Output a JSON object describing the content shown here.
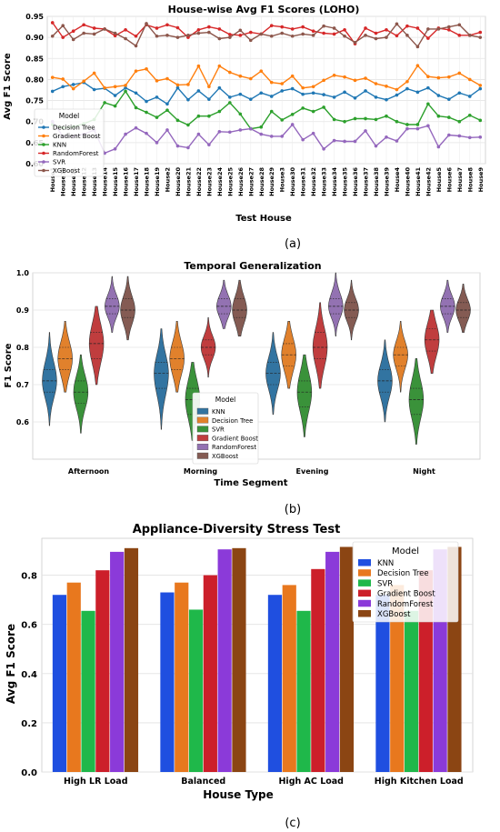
{
  "figure_labels": [
    "(a)",
    "(b)",
    "(c)"
  ],
  "chart_data": [
    {
      "type": "line",
      "title": "House-wise Avg F1 Scores (LOHO)",
      "xlabel": "Test House",
      "ylabel": "Avg F1 Score",
      "ylim": [
        0.6,
        0.95
      ],
      "yticks": [
        "0.60",
        "0.65",
        "0.70",
        "0.75",
        "0.80",
        "0.85",
        "0.90",
        "0.95"
      ],
      "grid": true,
      "legend": {
        "title": "Model",
        "placement": "left"
      },
      "categories": [
        "House1",
        "House10",
        "House11",
        "House12",
        "House13",
        "House14",
        "House15",
        "House16",
        "House17",
        "House18",
        "House19",
        "House2",
        "House20",
        "House21",
        "House22",
        "House23",
        "House24",
        "House25",
        "House26",
        "House27",
        "House28",
        "House29",
        "House3",
        "House30",
        "House31",
        "House32",
        "House33",
        "House34",
        "House35",
        "House36",
        "House37",
        "House38",
        "House39",
        "House4",
        "House40",
        "House41",
        "House42",
        "House5",
        "House6",
        "House7",
        "House8",
        "House9"
      ],
      "series": [
        {
          "name": "Decision Tree",
          "color": "#1f77b4",
          "values": [
            0.772,
            0.783,
            0.788,
            0.793,
            0.776,
            0.779,
            0.762,
            0.78,
            0.768,
            0.748,
            0.758,
            0.742,
            0.78,
            0.752,
            0.773,
            0.753,
            0.78,
            0.758,
            0.765,
            0.753,
            0.768,
            0.76,
            0.773,
            0.778,
            0.765,
            0.768,
            0.764,
            0.758,
            0.77,
            0.756,
            0.773,
            0.758,
            0.752,
            0.763,
            0.778,
            0.77,
            0.78,
            0.762,
            0.753,
            0.768,
            0.76,
            0.778
          ]
        },
        {
          "name": "Gradient Boost",
          "color": "#ff7f0e",
          "values": [
            0.805,
            0.801,
            0.778,
            0.796,
            0.815,
            0.78,
            0.783,
            0.786,
            0.82,
            0.825,
            0.797,
            0.802,
            0.787,
            0.788,
            0.832,
            0.783,
            0.832,
            0.817,
            0.808,
            0.802,
            0.82,
            0.793,
            0.79,
            0.808,
            0.78,
            0.783,
            0.798,
            0.81,
            0.806,
            0.798,
            0.803,
            0.79,
            0.784,
            0.776,
            0.795,
            0.833,
            0.807,
            0.804,
            0.806,
            0.815,
            0.8,
            0.786
          ]
        },
        {
          "name": "KNN",
          "color": "#2ca02c",
          "values": [
            0.693,
            0.685,
            0.688,
            0.695,
            0.705,
            0.745,
            0.737,
            0.772,
            0.733,
            0.722,
            0.71,
            0.727,
            0.703,
            0.692,
            0.713,
            0.713,
            0.724,
            0.745,
            0.718,
            0.683,
            0.687,
            0.724,
            0.704,
            0.717,
            0.732,
            0.724,
            0.734,
            0.705,
            0.7,
            0.707,
            0.707,
            0.705,
            0.713,
            0.7,
            0.693,
            0.693,
            0.742,
            0.713,
            0.71,
            0.7,
            0.715,
            0.703
          ]
        },
        {
          "name": "RandomForest",
          "color": "#d62728",
          "values": [
            0.935,
            0.9,
            0.915,
            0.93,
            0.922,
            0.92,
            0.904,
            0.918,
            0.903,
            0.93,
            0.922,
            0.93,
            0.923,
            0.9,
            0.918,
            0.925,
            0.92,
            0.907,
            0.905,
            0.912,
            0.908,
            0.928,
            0.925,
            0.92,
            0.925,
            0.915,
            0.91,
            0.908,
            0.918,
            0.885,
            0.922,
            0.91,
            0.918,
            0.904,
            0.927,
            0.922,
            0.898,
            0.922,
            0.918,
            0.905,
            0.905,
            0.912
          ]
        },
        {
          "name": "SVR",
          "color": "#9467bd",
          "values": [
            0.7,
            0.665,
            0.665,
            0.67,
            0.68,
            0.625,
            0.635,
            0.67,
            0.685,
            0.672,
            0.65,
            0.68,
            0.642,
            0.638,
            0.67,
            0.645,
            0.676,
            0.675,
            0.68,
            0.683,
            0.67,
            0.665,
            0.665,
            0.693,
            0.657,
            0.672,
            0.635,
            0.655,
            0.653,
            0.653,
            0.678,
            0.642,
            0.663,
            0.654,
            0.683,
            0.683,
            0.69,
            0.64,
            0.668,
            0.666,
            0.662,
            0.663
          ]
        },
        {
          "name": "XGBoost",
          "color": "#8c564b",
          "values": [
            0.903,
            0.928,
            0.895,
            0.91,
            0.908,
            0.92,
            0.91,
            0.897,
            0.88,
            0.933,
            0.903,
            0.905,
            0.9,
            0.905,
            0.91,
            0.912,
            0.897,
            0.9,
            0.917,
            0.893,
            0.908,
            0.903,
            0.91,
            0.903,
            0.908,
            0.905,
            0.927,
            0.922,
            0.903,
            0.888,
            0.905,
            0.897,
            0.9,
            0.932,
            0.905,
            0.878,
            0.92,
            0.92,
            0.925,
            0.93,
            0.905,
            0.9
          ]
        }
      ]
    },
    {
      "type": "violin",
      "title": "Temporal Generalization",
      "xlabel": "Time Segment",
      "ylabel": "F1 Score",
      "ylim": [
        0.5,
        1.0
      ],
      "yticks": [
        "0.6",
        "0.7",
        "0.8",
        "0.9",
        "1.0"
      ],
      "grid": true,
      "legend": {
        "title": "Model",
        "placement": "center"
      },
      "categories": [
        "Afternoon",
        "Morning",
        "Evening",
        "Night"
      ],
      "series": [
        {
          "name": "KNN",
          "color": "#3274a1",
          "distributions": [
            {
              "min": 0.59,
              "q1": 0.68,
              "median": 0.71,
              "q3": 0.74,
              "max": 0.84
            },
            {
              "min": 0.58,
              "q1": 0.69,
              "median": 0.73,
              "q3": 0.76,
              "max": 0.85
            },
            {
              "min": 0.62,
              "q1": 0.7,
              "median": 0.73,
              "q3": 0.76,
              "max": 0.84
            },
            {
              "min": 0.6,
              "q1": 0.68,
              "median": 0.71,
              "q3": 0.74,
              "max": 0.82
            }
          ]
        },
        {
          "name": "Decision Tree",
          "color": "#e1812c",
          "distributions": [
            {
              "min": 0.68,
              "q1": 0.74,
              "median": 0.77,
              "q3": 0.8,
              "max": 0.87
            },
            {
              "min": 0.68,
              "q1": 0.74,
              "median": 0.77,
              "q3": 0.8,
              "max": 0.87
            },
            {
              "min": 0.69,
              "q1": 0.75,
              "median": 0.78,
              "q3": 0.81,
              "max": 0.87
            },
            {
              "min": 0.68,
              "q1": 0.75,
              "median": 0.78,
              "q3": 0.8,
              "max": 0.87
            }
          ]
        },
        {
          "name": "SVR",
          "color": "#3a923a",
          "distributions": [
            {
              "min": 0.57,
              "q1": 0.65,
              "median": 0.68,
              "q3": 0.71,
              "max": 0.78
            },
            {
              "min": 0.55,
              "q1": 0.62,
              "median": 0.66,
              "q3": 0.69,
              "max": 0.76
            },
            {
              "min": 0.56,
              "q1": 0.64,
              "median": 0.68,
              "q3": 0.71,
              "max": 0.78
            },
            {
              "min": 0.54,
              "q1": 0.62,
              "median": 0.66,
              "q3": 0.69,
              "max": 0.77
            }
          ]
        },
        {
          "name": "Gradient Boost",
          "color": "#c03d3e",
          "distributions": [
            {
              "min": 0.7,
              "q1": 0.77,
              "median": 0.81,
              "q3": 0.84,
              "max": 0.91
            },
            {
              "min": 0.72,
              "q1": 0.78,
              "median": 0.8,
              "q3": 0.82,
              "max": 0.88
            },
            {
              "min": 0.69,
              "q1": 0.77,
              "median": 0.8,
              "q3": 0.84,
              "max": 0.92
            },
            {
              "min": 0.73,
              "q1": 0.79,
              "median": 0.82,
              "q3": 0.85,
              "max": 0.9
            }
          ]
        },
        {
          "name": "RandomForest",
          "color": "#9372b2",
          "distributions": [
            {
              "min": 0.84,
              "q1": 0.89,
              "median": 0.91,
              "q3": 0.93,
              "max": 0.99
            },
            {
              "min": 0.85,
              "q1": 0.89,
              "median": 0.91,
              "q3": 0.93,
              "max": 0.98
            },
            {
              "min": 0.83,
              "q1": 0.89,
              "median": 0.91,
              "q3": 0.93,
              "max": 1.0
            },
            {
              "min": 0.84,
              "q1": 0.89,
              "median": 0.91,
              "q3": 0.93,
              "max": 0.98
            }
          ]
        },
        {
          "name": "XGBoost",
          "color": "#845b53",
          "distributions": [
            {
              "min": 0.82,
              "q1": 0.88,
              "median": 0.9,
              "q3": 0.93,
              "max": 0.99
            },
            {
              "min": 0.83,
              "q1": 0.88,
              "median": 0.9,
              "q3": 0.93,
              "max": 0.98
            },
            {
              "min": 0.82,
              "q1": 0.88,
              "median": 0.9,
              "q3": 0.92,
              "max": 0.98
            },
            {
              "min": 0.84,
              "q1": 0.88,
              "median": 0.9,
              "q3": 0.92,
              "max": 0.97
            }
          ]
        }
      ]
    },
    {
      "type": "bar",
      "title": "Appliance-Diversity Stress Test",
      "xlabel": "House Type",
      "ylabel": "Avg F1 Score",
      "ylim": [
        0.0,
        0.95
      ],
      "yticks": [
        "0.0",
        "0.2",
        "0.4",
        "0.6",
        "0.8"
      ],
      "grid": true,
      "legend": {
        "title": "Model",
        "placement": "top-right"
      },
      "categories": [
        "High LR Load",
        "Balanced",
        "High AC Load",
        "High Kitchen Load"
      ],
      "series": [
        {
          "name": "KNN",
          "color": "#1f4fe0",
          "values": [
            0.72,
            0.73,
            0.72,
            0.72
          ]
        },
        {
          "name": "Decision Tree",
          "color": "#e8781e",
          "values": [
            0.77,
            0.77,
            0.76,
            0.76
          ]
        },
        {
          "name": "SVR",
          "color": "#1fb84a",
          "values": [
            0.655,
            0.66,
            0.655,
            0.655
          ]
        },
        {
          "name": "Gradient Boost",
          "color": "#cc1f2a",
          "values": [
            0.82,
            0.8,
            0.825,
            0.82
          ]
        },
        {
          "name": "RandomForest",
          "color": "#8b3ad9",
          "values": [
            0.895,
            0.905,
            0.895,
            0.905
          ]
        },
        {
          "name": "XGBoost",
          "color": "#8b4513",
          "values": [
            0.91,
            0.91,
            0.915,
            0.915
          ]
        }
      ]
    }
  ]
}
